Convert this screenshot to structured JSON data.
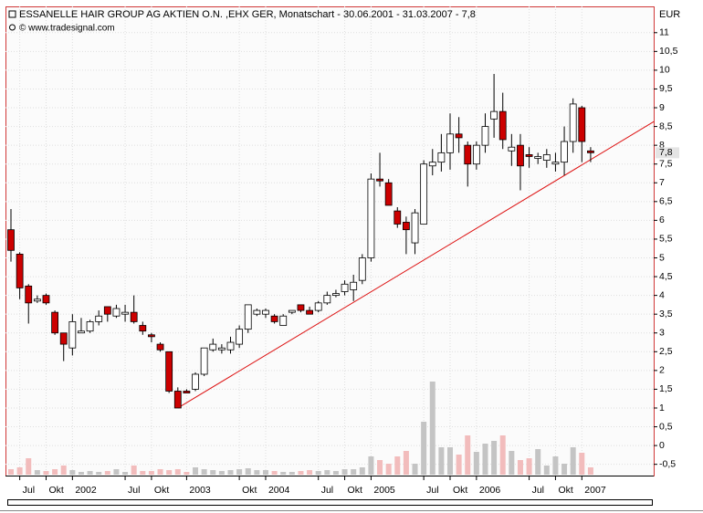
{
  "chart_data": {
    "type": "candlestick",
    "title": "ESSANELLE HAIR GROUP AG AKTIEN O.N. ,EHX GER, Monatschart - 30.06.2001 - 31.03.2007 - 7,8",
    "subtitle": "© www.tradesignal.com",
    "y_axis_label": "EUR",
    "categories": [
      null,
      "Jul",
      null,
      null,
      "Okt",
      null,
      null,
      "2002",
      null,
      null,
      null,
      null,
      null,
      "Jul",
      null,
      null,
      "Okt",
      null,
      null,
      null,
      "2003",
      null,
      null,
      null,
      null,
      null,
      "Okt",
      null,
      null,
      "2004",
      null,
      null,
      null,
      null,
      null,
      "Jul",
      null,
      null,
      "Okt",
      null,
      null,
      "2005",
      null,
      null,
      null,
      null,
      null,
      "Jul",
      null,
      null,
      "Okt",
      null,
      null,
      "2006",
      null,
      null,
      null,
      null,
      null,
      "Jul",
      null,
      null,
      "Okt",
      null,
      null,
      "2007",
      null
    ],
    "open": [
      5.75,
      5.1,
      4.25,
      3.85,
      4.0,
      3.55,
      3.0,
      2.6,
      3.0,
      3.05,
      3.3,
      3.7,
      3.45,
      3.5,
      3.55,
      3.2,
      2.95,
      2.7,
      2.5,
      1.45,
      1.45,
      1.5,
      1.9,
      2.55,
      2.55,
      2.55,
      2.7,
      3.1,
      3.5,
      3.5,
      3.45,
      3.2,
      3.55,
      3.75,
      3.6,
      3.6,
      3.8,
      4.0,
      4.1,
      4.15,
      4.4,
      5.0,
      7.1,
      7.0,
      6.25,
      5.95,
      5.4,
      5.9,
      7.45,
      7.55,
      7.8,
      8.3,
      8.0,
      7.5,
      8.0,
      8.7,
      8.9,
      7.85,
      8.0,
      7.75,
      7.65,
      7.6,
      7.5,
      7.55,
      8.1,
      9.0,
      7.85
    ],
    "high": [
      6.3,
      5.15,
      4.3,
      4.0,
      4.05,
      3.6,
      3.0,
      3.5,
      3.4,
      3.35,
      3.6,
      3.7,
      3.75,
      3.75,
      4.0,
      3.3,
      3.0,
      2.75,
      2.5,
      1.55,
      1.5,
      1.95,
      2.6,
      2.85,
      2.7,
      2.9,
      3.2,
      3.75,
      3.65,
      3.65,
      3.5,
      3.5,
      3.6,
      3.75,
      3.7,
      3.85,
      4.1,
      4.15,
      4.4,
      4.55,
      5.1,
      7.25,
      7.8,
      7.1,
      6.35,
      6.1,
      6.3,
      7.6,
      7.9,
      8.3,
      8.85,
      8.75,
      8.1,
      8.1,
      8.85,
      9.9,
      9.4,
      8.3,
      8.3,
      7.95,
      7.8,
      7.9,
      7.8,
      8.5,
      9.25,
      9.05,
      7.95
    ],
    "low": [
      4.9,
      3.9,
      3.25,
      3.8,
      3.75,
      2.95,
      2.25,
      2.4,
      3.0,
      3.0,
      3.2,
      3.3,
      3.4,
      3.3,
      3.25,
      2.95,
      2.75,
      2.5,
      1.4,
      1.0,
      1.4,
      1.45,
      1.85,
      2.5,
      2.45,
      2.45,
      2.6,
      3.0,
      3.45,
      3.4,
      3.25,
      3.2,
      3.5,
      3.55,
      3.5,
      3.55,
      3.75,
      3.95,
      4.0,
      3.85,
      4.3,
      4.9,
      6.9,
      6.4,
      5.8,
      5.1,
      5.1,
      5.9,
      7.2,
      7.3,
      7.35,
      7.8,
      6.9,
      7.35,
      7.8,
      8.2,
      7.9,
      7.45,
      6.8,
      7.4,
      7.5,
      7.4,
      7.3,
      7.2,
      7.8,
      7.55,
      7.55
    ],
    "close": [
      5.2,
      4.2,
      3.8,
      3.9,
      3.8,
      3.0,
      2.7,
      3.3,
      3.05,
      3.3,
      3.45,
      3.5,
      3.65,
      3.55,
      3.3,
      3.05,
      2.9,
      2.55,
      1.45,
      1.0,
      1.4,
      1.9,
      2.6,
      2.7,
      2.6,
      2.75,
      3.1,
      3.75,
      3.6,
      3.6,
      3.3,
      3.45,
      3.6,
      3.6,
      3.5,
      3.8,
      4.0,
      4.05,
      4.3,
      4.35,
      5.0,
      7.1,
      7.05,
      6.4,
      5.9,
      5.75,
      6.2,
      7.5,
      7.55,
      7.8,
      8.3,
      8.2,
      7.5,
      8.0,
      8.5,
      8.9,
      8.15,
      7.95,
      7.45,
      7.7,
      7.7,
      7.75,
      7.55,
      8.1,
      9.1,
      8.1,
      7.8
    ],
    "up_color": "#ffffff",
    "down_color": "#cc0000",
    "volume": {
      "values": [
        6,
        8,
        18,
        5,
        4,
        6,
        10,
        5,
        3,
        4,
        3,
        4,
        6,
        3,
        10,
        4,
        4,
        6,
        5,
        6,
        3,
        8,
        6,
        5,
        4,
        5,
        6,
        7,
        5,
        5,
        4,
        3,
        3,
        4,
        5,
        4,
        5,
        4,
        6,
        6,
        8,
        20,
        16,
        12,
        20,
        26,
        12,
        58,
        102,
        30,
        30,
        22,
        43,
        25,
        34,
        37,
        43,
        26,
        16,
        18,
        28,
        10,
        20,
        12,
        30,
        24,
        8
      ],
      "lim": [
        0,
        110
      ],
      "up_color": "#c4c4c4",
      "down_color": "#f2bcbc"
    },
    "trendline": {
      "color": "#dd1111",
      "points": [
        [
          19,
          1.0
        ],
        [
          73.2,
          8.63
        ]
      ]
    },
    "last_value": {
      "value": 7.8,
      "label": "7,8"
    },
    "ylim": [
      -0.8,
      11.7
    ],
    "yticks": [
      {
        "value": -0.5,
        "label": "-0,5"
      },
      0,
      {
        "value": 0.5,
        "label": "0,5"
      },
      1,
      {
        "value": 1.5,
        "label": "1,5"
      },
      2,
      {
        "value": 2.5,
        "label": "2,5"
      },
      3,
      {
        "value": 3.5,
        "label": "3,5"
      },
      4,
      {
        "value": 4.5,
        "label": "4,5"
      },
      5,
      {
        "value": 5.5,
        "label": "5,5"
      },
      6,
      {
        "value": 6.5,
        "label": "6,5"
      },
      7,
      {
        "value": 7.5,
        "label": "7,5"
      },
      8,
      {
        "value": 8.5,
        "label": "8,5"
      },
      9,
      {
        "value": 9.5,
        "label": "9,5"
      },
      10,
      {
        "value": 10.5,
        "label": "10,5"
      },
      11
    ],
    "grid": true
  }
}
